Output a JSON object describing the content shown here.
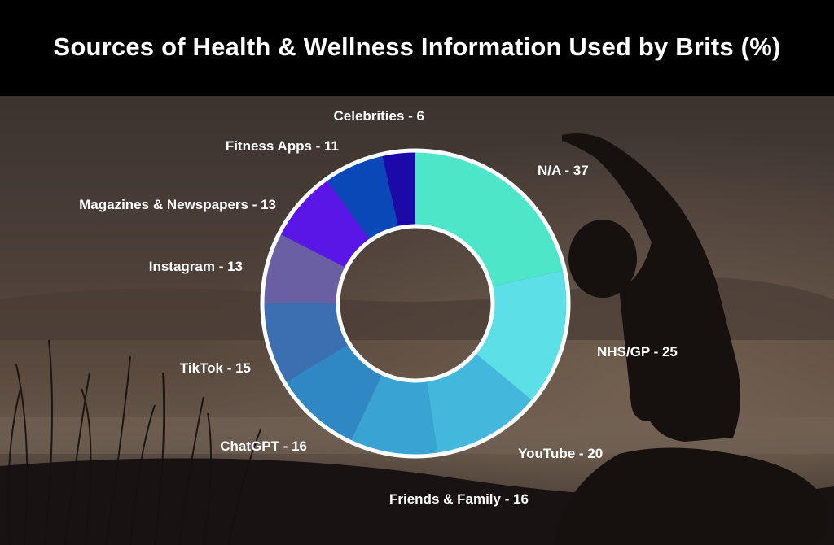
{
  "title": "Sources of Health & Wellness Information Used by Brits (%)",
  "colors": {
    "header_bg": "#000000",
    "label_text": "#ffffff",
    "ring_outline": "#ffffff"
  },
  "chart_data": {
    "type": "pie",
    "variant": "donut",
    "title": "Sources of Health & Wellness Information Used by Brits (%)",
    "categories": [
      "N/A",
      "NHS/GP",
      "YouTube",
      "Friends & Family",
      "ChatGPT",
      "TikTok",
      "Instagram",
      "Magazines & Newspapers",
      "Fitness Apps",
      "Celebrities"
    ],
    "values": [
      37,
      25,
      20,
      16,
      16,
      15,
      13,
      13,
      11,
      6
    ],
    "labels": [
      "N/A - 37",
      "NHS/GP - 25",
      "YouTube - 20",
      "Friends & Family - 16",
      "ChatGPT - 16",
      "TikTok - 15",
      "Instagram - 13",
      "Magazines & Newspapers - 13",
      "Fitness Apps - 11",
      "Celebrities - 6"
    ],
    "colors": [
      "#4ee6c8",
      "#5ddfe8",
      "#44b8dc",
      "#39a3d4",
      "#2f88c4",
      "#3c6fb2",
      "#6b5fa4",
      "#5a16e6",
      "#0a48b8",
      "#1c0aa8"
    ],
    "legend": "none"
  }
}
